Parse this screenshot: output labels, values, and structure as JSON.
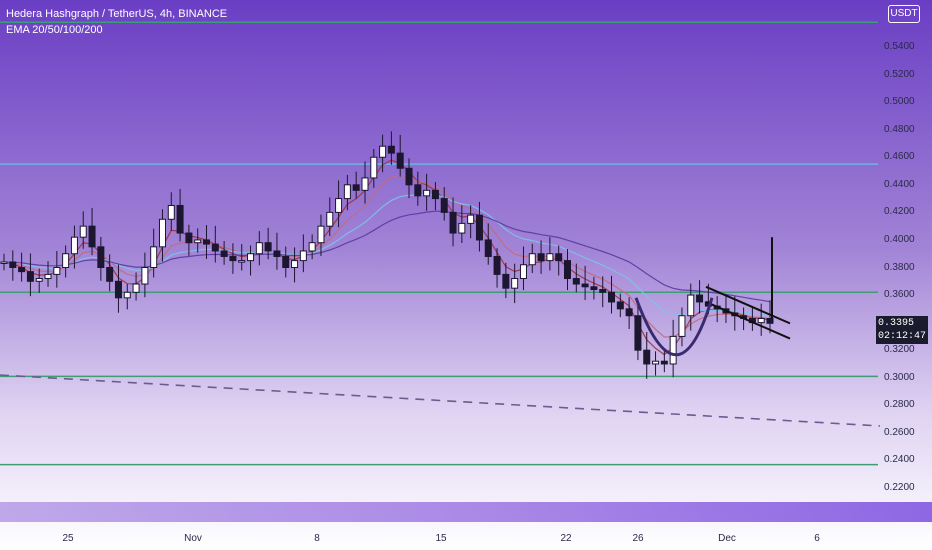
{
  "header": {
    "symbol_line": "Hedera Hashgraph / TetherUS, 4h, BINANCE",
    "indicator_line": "EMA 20/50/100/200"
  },
  "currency_button": "USDT",
  "price_tag": {
    "price": "0.3395",
    "countdown": "02:12:47"
  },
  "colors": {
    "bg_top": "#6a3ec4",
    "bg_bottom": "#ffffff",
    "candle_up": "#1c1630",
    "level_green": "#3d9e75",
    "level_blue": "#6fb3e8",
    "ema_20": "#a0303c",
    "ema_50": "#c26b7a",
    "ema_100": "#7dc3e8",
    "ema_200": "#5a3aa0",
    "volume_band": "#7b4fe0"
  },
  "chart_data": {
    "type": "candlestick",
    "title": "Hedera Hashgraph / TetherUS, 4h, BINANCE",
    "indicators": [
      "EMA 20/50/100/200"
    ],
    "y_ticks": [
      "0.5400",
      "0.5200",
      "0.5000",
      "0.4800",
      "0.4600",
      "0.4400",
      "0.4200",
      "0.4000",
      "0.3800",
      "0.3600",
      "0.3400",
      "0.3200",
      "0.3000",
      "0.2800",
      "0.2600",
      "0.2400",
      "0.2200"
    ],
    "x_ticks": [
      "25",
      "Nov",
      "8",
      "15",
      "22",
      "26",
      "Dec",
      "6"
    ],
    "ylim": [
      0.215,
      0.56
    ],
    "horizontal_levels": [
      {
        "price": 0.558,
        "color": "#3d9e75"
      },
      {
        "price": 0.455,
        "color": "#6fb3e8"
      },
      {
        "price": 0.362,
        "color": "#3d9e75"
      },
      {
        "price": 0.301,
        "color": "#3d9e75"
      },
      {
        "price": 0.237,
        "color": "#3d9e75"
      }
    ],
    "trendline_dashed": {
      "start": [
        "Oct 21",
        0.302
      ],
      "end": [
        "Dec 8",
        0.265
      ]
    },
    "flag_lines": [
      {
        "start": [
          "Dec 1",
          0.366
        ],
        "end": [
          "Dec 4",
          0.338
        ]
      },
      {
        "start": [
          "Dec 1",
          0.355
        ],
        "end": [
          "Dec 4",
          0.327
        ]
      }
    ],
    "breakout_line": {
      "date": "Dec 4",
      "from": 0.343,
      "to": 0.402
    },
    "cup_bottom": 0.3,
    "last_price": 0.3395,
    "series_close": [
      0.384,
      0.38,
      0.377,
      0.37,
      0.372,
      0.375,
      0.38,
      0.39,
      0.402,
      0.41,
      0.395,
      0.38,
      0.37,
      0.358,
      0.362,
      0.368,
      0.38,
      0.395,
      0.415,
      0.425,
      0.405,
      0.398,
      0.4,
      0.397,
      0.392,
      0.388,
      0.385,
      0.385,
      0.39,
      0.398,
      0.392,
      0.388,
      0.38,
      0.385,
      0.392,
      0.398,
      0.41,
      0.42,
      0.43,
      0.44,
      0.436,
      0.445,
      0.46,
      0.468,
      0.463,
      0.452,
      0.44,
      0.432,
      0.436,
      0.43,
      0.42,
      0.405,
      0.412,
      0.418,
      0.4,
      0.388,
      0.375,
      0.365,
      0.372,
      0.382,
      0.39,
      0.385,
      0.39,
      0.385,
      0.372,
      0.368,
      0.366,
      0.364,
      0.362,
      0.355,
      0.35,
      0.345,
      0.32,
      0.31,
      0.312,
      0.31,
      0.33,
      0.345,
      0.36,
      0.355,
      0.352,
      0.35,
      0.347,
      0.345,
      0.343,
      0.34,
      0.343,
      0.3395
    ]
  }
}
